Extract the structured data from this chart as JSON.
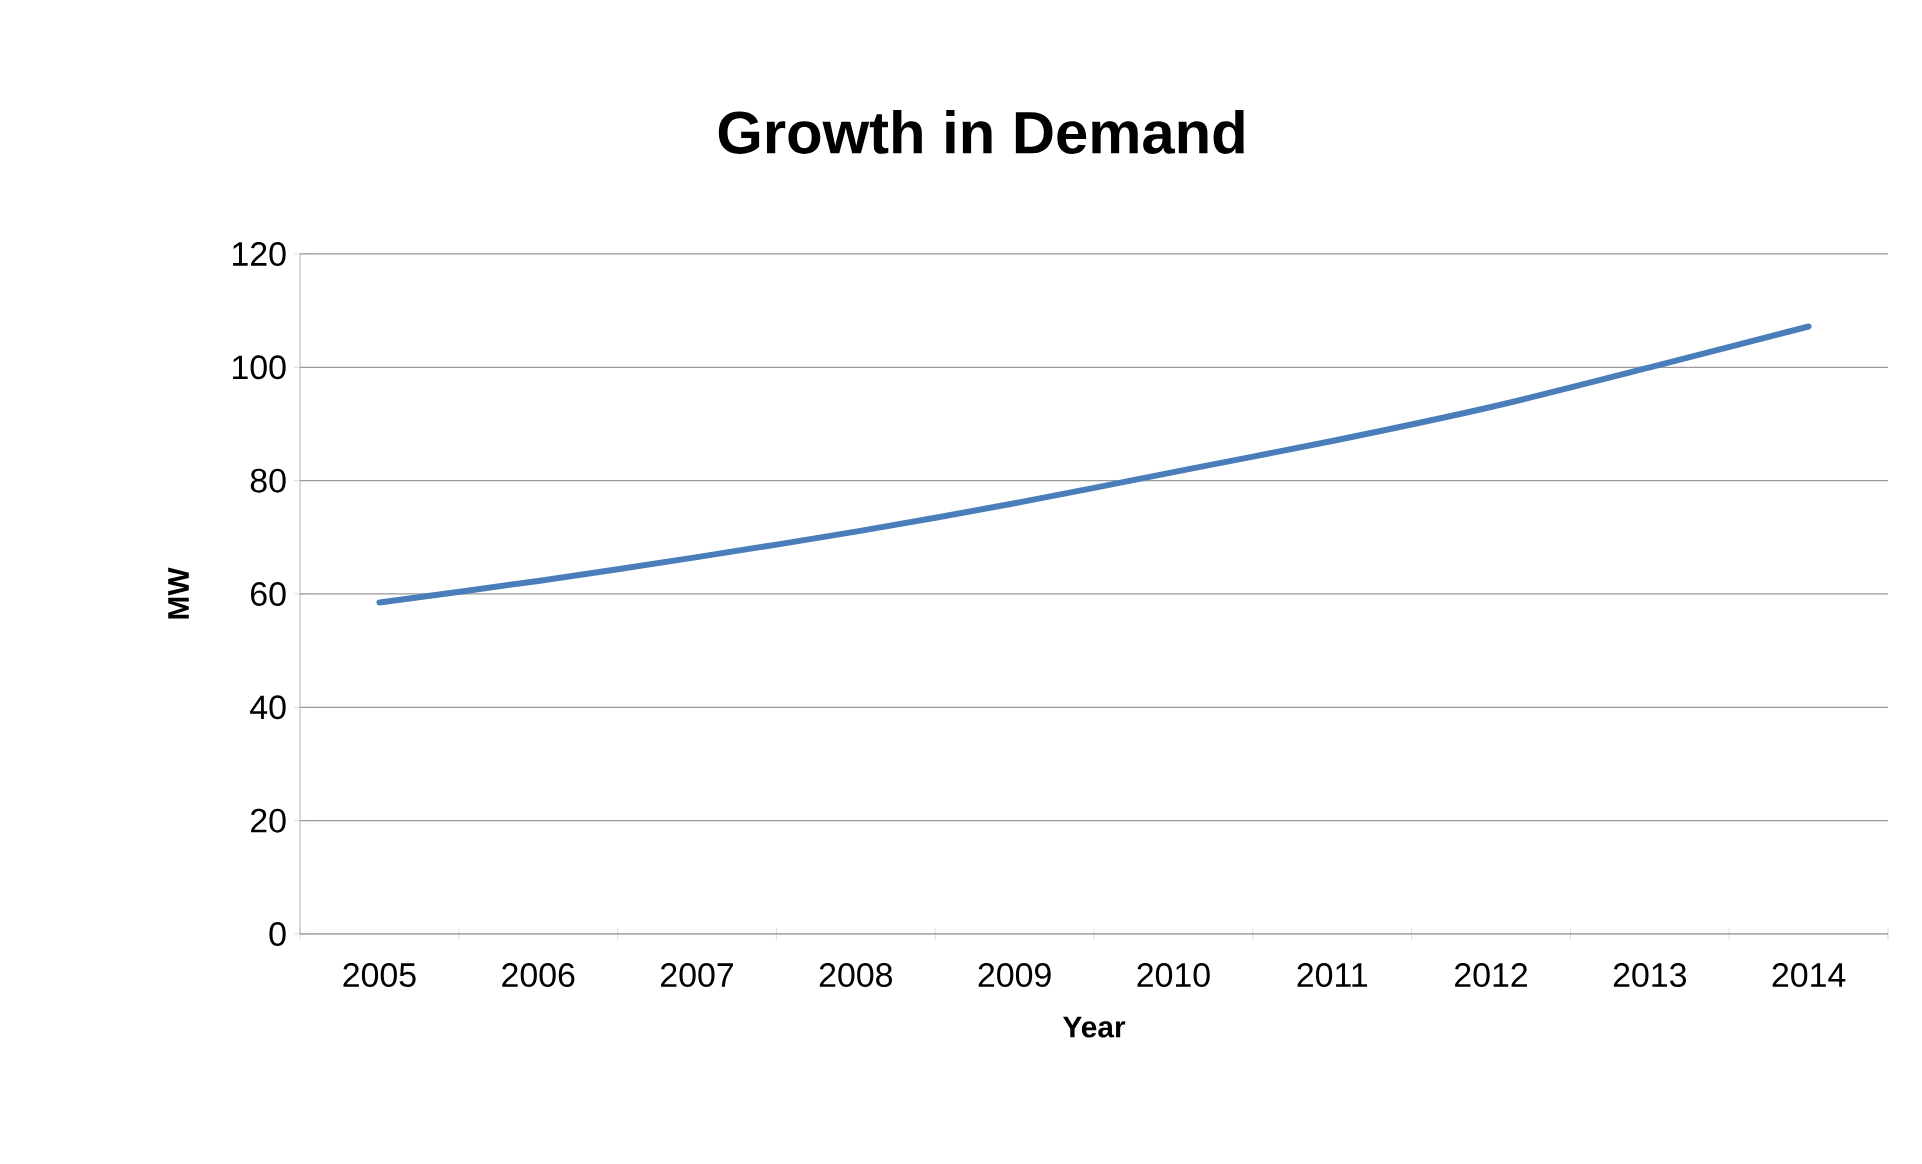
{
  "chart_data": {
    "type": "line",
    "title": "Growth in Demand",
    "xlabel": "Year",
    "ylabel": "MW",
    "categories": [
      "2005",
      "2006",
      "2007",
      "2008",
      "2009",
      "2010",
      "2011",
      "2012",
      "2013",
      "2014"
    ],
    "series": [
      {
        "color": "#4a7ebb",
        "values": [
          58.5,
          62.3,
          66.5,
          71,
          76,
          81.5,
          87,
          93,
          100,
          107.2
        ]
      }
    ],
    "ylim": [
      0,
      120
    ],
    "yticks": [
      0,
      20,
      40,
      60,
      80,
      100,
      120
    ],
    "grid": "y",
    "marker": "none",
    "line_style": "solid"
  }
}
